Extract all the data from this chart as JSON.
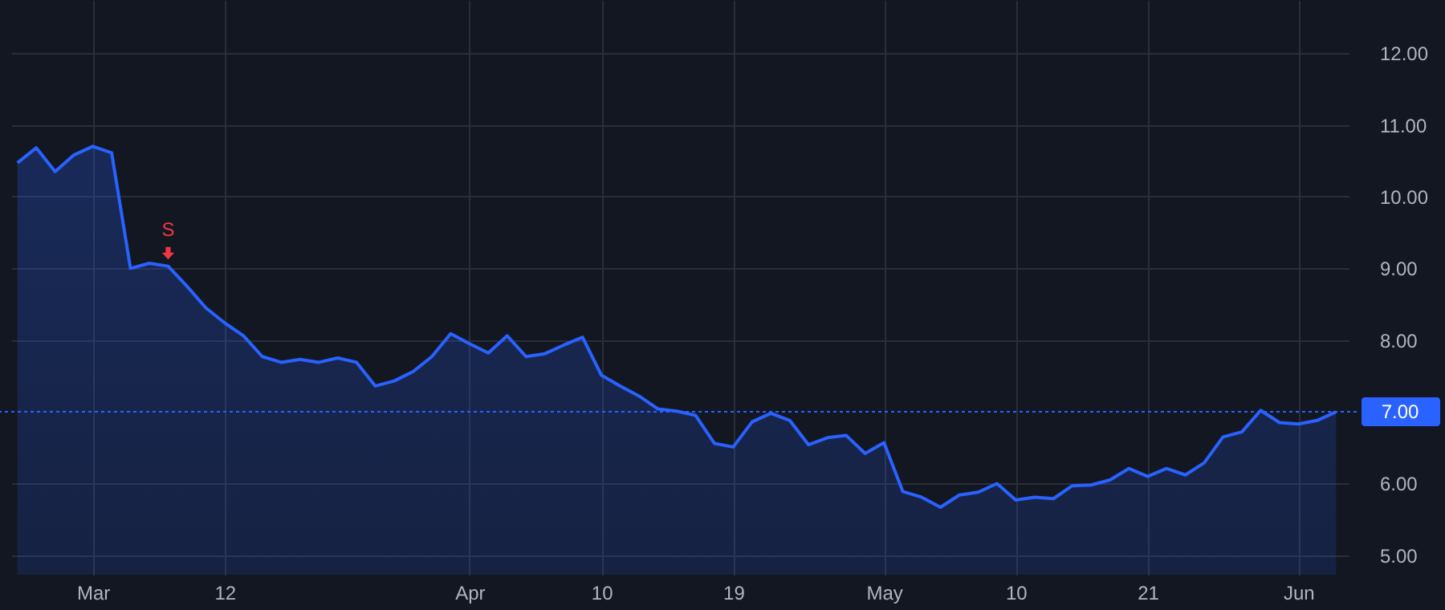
{
  "chart_data": {
    "type": "area",
    "categories": [
      null,
      null,
      null,
      null,
      "Mar",
      null,
      null,
      null,
      null,
      null,
      null,
      "12",
      null,
      null,
      null,
      null,
      null,
      null,
      null,
      null,
      null,
      null,
      null,
      null,
      "Apr",
      null,
      null,
      null,
      null,
      null,
      null,
      "10",
      null,
      null,
      null,
      null,
      null,
      null,
      "19",
      null,
      null,
      null,
      null,
      null,
      null,
      null,
      "May",
      null,
      null,
      null,
      null,
      null,
      null,
      "10",
      null,
      null,
      null,
      null,
      null,
      null,
      "21",
      null,
      null,
      null,
      null,
      null,
      null,
      null,
      "Jun",
      null,
      null
    ],
    "series": [
      {
        "color": "#2962ff",
        "values": [
          10.47,
          10.68,
          10.35,
          10.58,
          10.7,
          10.61,
          9.0,
          9.07,
          9.03,
          8.75,
          8.45,
          8.24,
          8.06,
          7.77,
          7.69,
          7.73,
          7.69,
          7.75,
          7.69,
          7.36,
          7.43,
          7.56,
          7.77,
          8.09,
          7.95,
          7.82,
          8.06,
          7.77,
          7.81,
          7.93,
          8.04,
          7.51,
          7.36,
          7.22,
          7.04,
          7.01,
          6.95,
          6.56,
          6.51,
          6.86,
          6.98,
          6.88,
          6.54,
          6.64,
          6.67,
          6.42,
          6.57,
          5.89,
          5.81,
          5.67,
          5.84,
          5.88,
          6.0,
          5.77,
          5.81,
          5.79,
          5.97,
          5.98,
          6.05,
          6.21,
          6.1,
          6.21,
          6.12,
          6.29,
          6.65,
          6.72,
          7.02,
          6.85,
          6.83,
          6.88,
          7.0
        ]
      },
      {
        "type": "scatter",
        "name": "S",
        "color": "#f23645",
        "values": [
          null,
          null,
          null,
          null,
          null,
          null,
          null,
          null,
          9.21,
          null,
          null,
          null,
          null,
          null,
          null,
          null,
          null,
          null,
          null,
          null,
          null,
          null,
          null,
          null,
          null,
          null,
          null,
          null,
          null,
          null,
          null,
          null,
          null,
          null,
          null,
          null,
          null,
          null,
          null,
          null,
          null,
          null,
          null,
          null,
          null,
          null,
          null,
          null,
          null,
          null,
          null,
          null,
          null,
          null,
          null,
          null,
          null,
          null,
          null,
          null,
          null,
          null,
          null,
          null,
          null,
          null,
          null,
          null,
          null,
          null,
          null
        ]
      }
    ],
    "ylim": [
      4.73,
      12.74
    ],
    "yticks": [
      {
        "value": 5,
        "label": "5.00"
      },
      {
        "value": 6,
        "label": "6.00"
      },
      {
        "value": 8,
        "label": "8.00"
      },
      {
        "value": 9,
        "label": "9.00"
      },
      {
        "value": 10,
        "label": "10.00"
      },
      {
        "value": 11,
        "label": "11.00"
      },
      {
        "value": 12,
        "label": "12.00"
      }
    ],
    "grid": true,
    "ref_lines": [
      {
        "axis": "y",
        "value": 7,
        "label": "7.00",
        "color": "#2962ff",
        "line_style": "dotted"
      }
    ]
  }
}
